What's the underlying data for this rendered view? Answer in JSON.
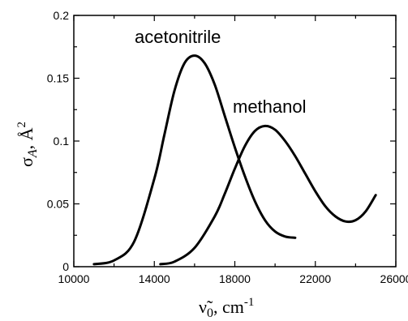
{
  "chart_data": {
    "type": "line",
    "xlabel": "ν̃₀, cm⁻¹",
    "ylabel": "σA, Å²",
    "xlim": [
      10000,
      26000
    ],
    "ylim": [
      0,
      0.2
    ],
    "x_ticks": [
      "10000",
      "14000",
      "18000",
      "22000",
      "26000"
    ],
    "y_ticks": [
      "0",
      "0.05",
      "0.1",
      "0.15",
      "0.2"
    ],
    "grid": false,
    "series": [
      {
        "name": "acetonitrile",
        "x": [
          11000,
          12000,
          13000,
          14000,
          14500,
          15000,
          15500,
          16000,
          16500,
          17000,
          17500,
          18000,
          18500,
          19000,
          19500,
          20000,
          20500,
          21000
        ],
        "y": [
          0.002,
          0.005,
          0.02,
          0.07,
          0.105,
          0.14,
          0.162,
          0.168,
          0.162,
          0.145,
          0.12,
          0.095,
          0.072,
          0.052,
          0.037,
          0.028,
          0.024,
          0.023
        ]
      },
      {
        "name": "methanol",
        "x": [
          14300,
          15000,
          16000,
          17000,
          17500,
          18000,
          18500,
          19000,
          19500,
          20000,
          20500,
          21000,
          21500,
          22000,
          22500,
          23000,
          23500,
          24000,
          24500,
          25000
        ],
        "y": [
          0.002,
          0.004,
          0.015,
          0.04,
          0.058,
          0.078,
          0.096,
          0.108,
          0.112,
          0.109,
          0.1,
          0.088,
          0.074,
          0.06,
          0.048,
          0.04,
          0.036,
          0.037,
          0.044,
          0.057
        ]
      }
    ]
  }
}
